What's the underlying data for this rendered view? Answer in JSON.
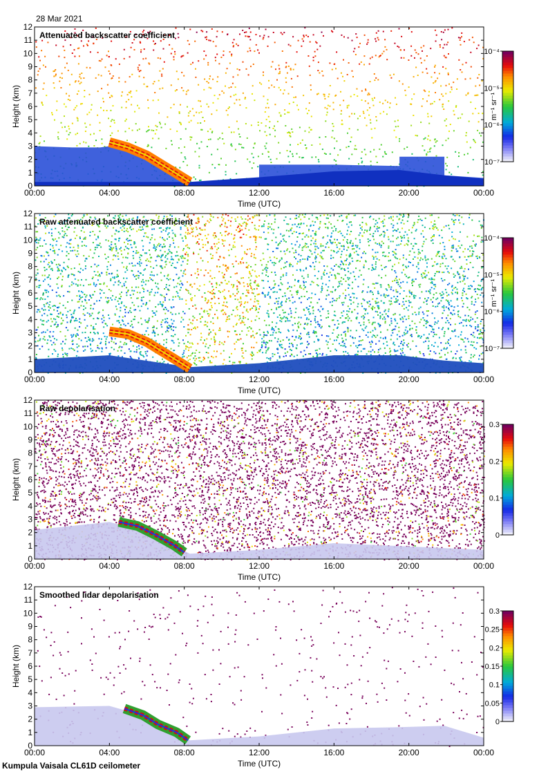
{
  "date": "28 Mar 2021",
  "footer": "Kumpula Vaisala CL61D ceilometer",
  "ylabel": "Height (km)",
  "xlabel": "Time (UTC)",
  "chart_data": [
    {
      "type": "heatmap",
      "title": "Attenuated backscatter coefficient",
      "xlabel": "Time (UTC)",
      "ylabel": "Height (km)",
      "x_ticks": [
        "00:00",
        "04:00",
        "08:00",
        "12:00",
        "16:00",
        "20:00",
        "00:00"
      ],
      "xlim_hours": [
        0,
        24
      ],
      "ylim": [
        0,
        12
      ],
      "y_ticks": [
        "0",
        "1",
        "2",
        "3",
        "4",
        "5",
        "6",
        "7",
        "8",
        "9",
        "10",
        "11",
        "12"
      ],
      "colorbar": {
        "ticks": [
          "10⁻⁷",
          "10⁻⁶",
          "10⁻⁵",
          "10⁻⁴"
        ],
        "tick_values_log10": [
          -7,
          -6,
          -5,
          -4
        ],
        "range_log10": [
          -7,
          -4
        ],
        "scale": "log",
        "label": "m⁻¹ sr⁻¹"
      },
      "features": {
        "boundary_layer_top_km": [
          [
            0,
            3.0
          ],
          [
            2,
            2.9
          ],
          [
            3.5,
            2.9
          ],
          [
            4.5,
            3.1
          ],
          [
            5.5,
            2.8
          ],
          [
            6.5,
            2.0
          ],
          [
            7.5,
            1.2
          ],
          [
            8.3,
            0.3
          ],
          [
            12,
            0.4
          ],
          [
            12,
            1.6
          ],
          [
            16,
            1.6
          ],
          [
            19.5,
            1.5
          ],
          [
            19.5,
            2.2
          ],
          [
            21.9,
            2.2
          ],
          [
            21.9,
            0.8
          ],
          [
            24,
            0.6
          ]
        ],
        "cloud_layer": [
          [
            4.0,
            3.3
          ],
          [
            5.0,
            2.9
          ],
          [
            6.0,
            2.3
          ],
          [
            6.8,
            1.6
          ],
          [
            7.5,
            1.0
          ],
          [
            8.3,
            0.3
          ]
        ],
        "surface_layer_top_km": [
          [
            0,
            0.3
          ],
          [
            8.3,
            0.3
          ],
          [
            12,
            0.65
          ],
          [
            16,
            1.1
          ],
          [
            19.5,
            1.2
          ],
          [
            21.9,
            0.8
          ],
          [
            24,
            0.55
          ]
        ]
      }
    },
    {
      "type": "heatmap",
      "title": "Raw attenuated backscatter coefficient",
      "xlabel": "Time (UTC)",
      "ylabel": "Height (km)",
      "x_ticks": [
        "00:00",
        "04:00",
        "08:00",
        "12:00",
        "16:00",
        "20:00",
        "00:00"
      ],
      "xlim_hours": [
        0,
        24
      ],
      "ylim": [
        0,
        12
      ],
      "y_ticks": [
        "0",
        "1",
        "2",
        "3",
        "4",
        "5",
        "6",
        "7",
        "8",
        "9",
        "10",
        "11",
        "12"
      ],
      "colorbar": {
        "ticks": [
          "10⁻⁷",
          "10⁻⁶",
          "10⁻⁵",
          "10⁻⁴"
        ],
        "tick_values_log10": [
          -7,
          -6,
          -5,
          -4
        ],
        "range_log10": [
          -7,
          -4
        ],
        "scale": "log",
        "label": "m⁻¹ sr⁻¹"
      },
      "features": {
        "cloud_layer": [
          [
            4.0,
            3.1
          ],
          [
            5.0,
            2.9
          ],
          [
            6.0,
            2.3
          ],
          [
            6.8,
            1.6
          ],
          [
            7.5,
            1.0
          ],
          [
            8.3,
            0.3
          ]
        ],
        "surface_layer_top_km": [
          [
            0,
            1.0
          ],
          [
            4,
            1.3
          ],
          [
            8.3,
            0.4
          ],
          [
            12,
            0.7
          ],
          [
            16,
            1.3
          ],
          [
            19.5,
            1.3
          ],
          [
            21.9,
            0.9
          ],
          [
            24,
            0.7
          ]
        ],
        "high_noise_region_hours": [
          8,
          12
        ]
      }
    },
    {
      "type": "heatmap",
      "title": "Raw depolarisation",
      "xlabel": "Time (UTC)",
      "ylabel": "Height (km)",
      "x_ticks": [
        "00:00",
        "04:00",
        "08:00",
        "12:00",
        "16:00",
        "20:00",
        "00:00"
      ],
      "xlim_hours": [
        0,
        24
      ],
      "ylim": [
        0,
        12
      ],
      "y_ticks": [
        "0",
        "1",
        "2",
        "3",
        "4",
        "5",
        "6",
        "7",
        "8",
        "9",
        "10",
        "11",
        "12"
      ],
      "colorbar": {
        "ticks": [
          "0",
          "0.1",
          "0.2",
          "0.3"
        ],
        "tick_values": [
          0,
          0.1,
          0.2,
          0.3
        ],
        "range": [
          0,
          0.3
        ],
        "scale": "linear"
      },
      "features": {
        "low_depol_region_top_km": [
          [
            0,
            2.2
          ],
          [
            4,
            2.8
          ],
          [
            6,
            2.0
          ],
          [
            8.3,
            0.4
          ],
          [
            12,
            0.7
          ],
          [
            16,
            1.2
          ],
          [
            24,
            0.7
          ]
        ],
        "cloud_layer": [
          [
            4.5,
            2.8
          ],
          [
            5.5,
            2.5
          ],
          [
            6.5,
            1.8
          ],
          [
            7.5,
            1.0
          ],
          [
            8.0,
            0.5
          ]
        ]
      }
    },
    {
      "type": "heatmap",
      "title": "Smoothed lidar depolarisation",
      "xlabel": "Time (UTC)",
      "ylabel": "Height (km)",
      "x_ticks": [
        "00:00",
        "04:00",
        "08:00",
        "12:00",
        "16:00",
        "20:00",
        "00:00"
      ],
      "xlim_hours": [
        0,
        24
      ],
      "ylim": [
        0,
        12
      ],
      "y_ticks": [
        "0",
        "1",
        "2",
        "3",
        "4",
        "5",
        "6",
        "7",
        "8",
        "9",
        "10",
        "11",
        "12"
      ],
      "colorbar": {
        "ticks": [
          "0",
          "0.05",
          "0.1",
          "0.15",
          "0.2",
          "0.25",
          "0.3"
        ],
        "tick_values": [
          0,
          0.05,
          0.1,
          0.15,
          0.2,
          0.25,
          0.3
        ],
        "range": [
          0,
          0.3
        ],
        "scale": "linear"
      },
      "features": {
        "boundary_layer_top_km": [
          [
            0,
            2.9
          ],
          [
            4,
            3.0
          ],
          [
            6,
            2.2
          ],
          [
            8.3,
            0.4
          ],
          [
            12,
            0.7
          ],
          [
            16,
            1.3
          ],
          [
            19.5,
            1.4
          ],
          [
            21.9,
            1.5
          ],
          [
            24,
            0.6
          ]
        ],
        "cloud_layer": [
          [
            4.8,
            2.8
          ],
          [
            5.8,
            2.3
          ],
          [
            6.6,
            1.6
          ],
          [
            7.6,
            1.0
          ],
          [
            8.2,
            0.4
          ]
        ]
      }
    }
  ]
}
